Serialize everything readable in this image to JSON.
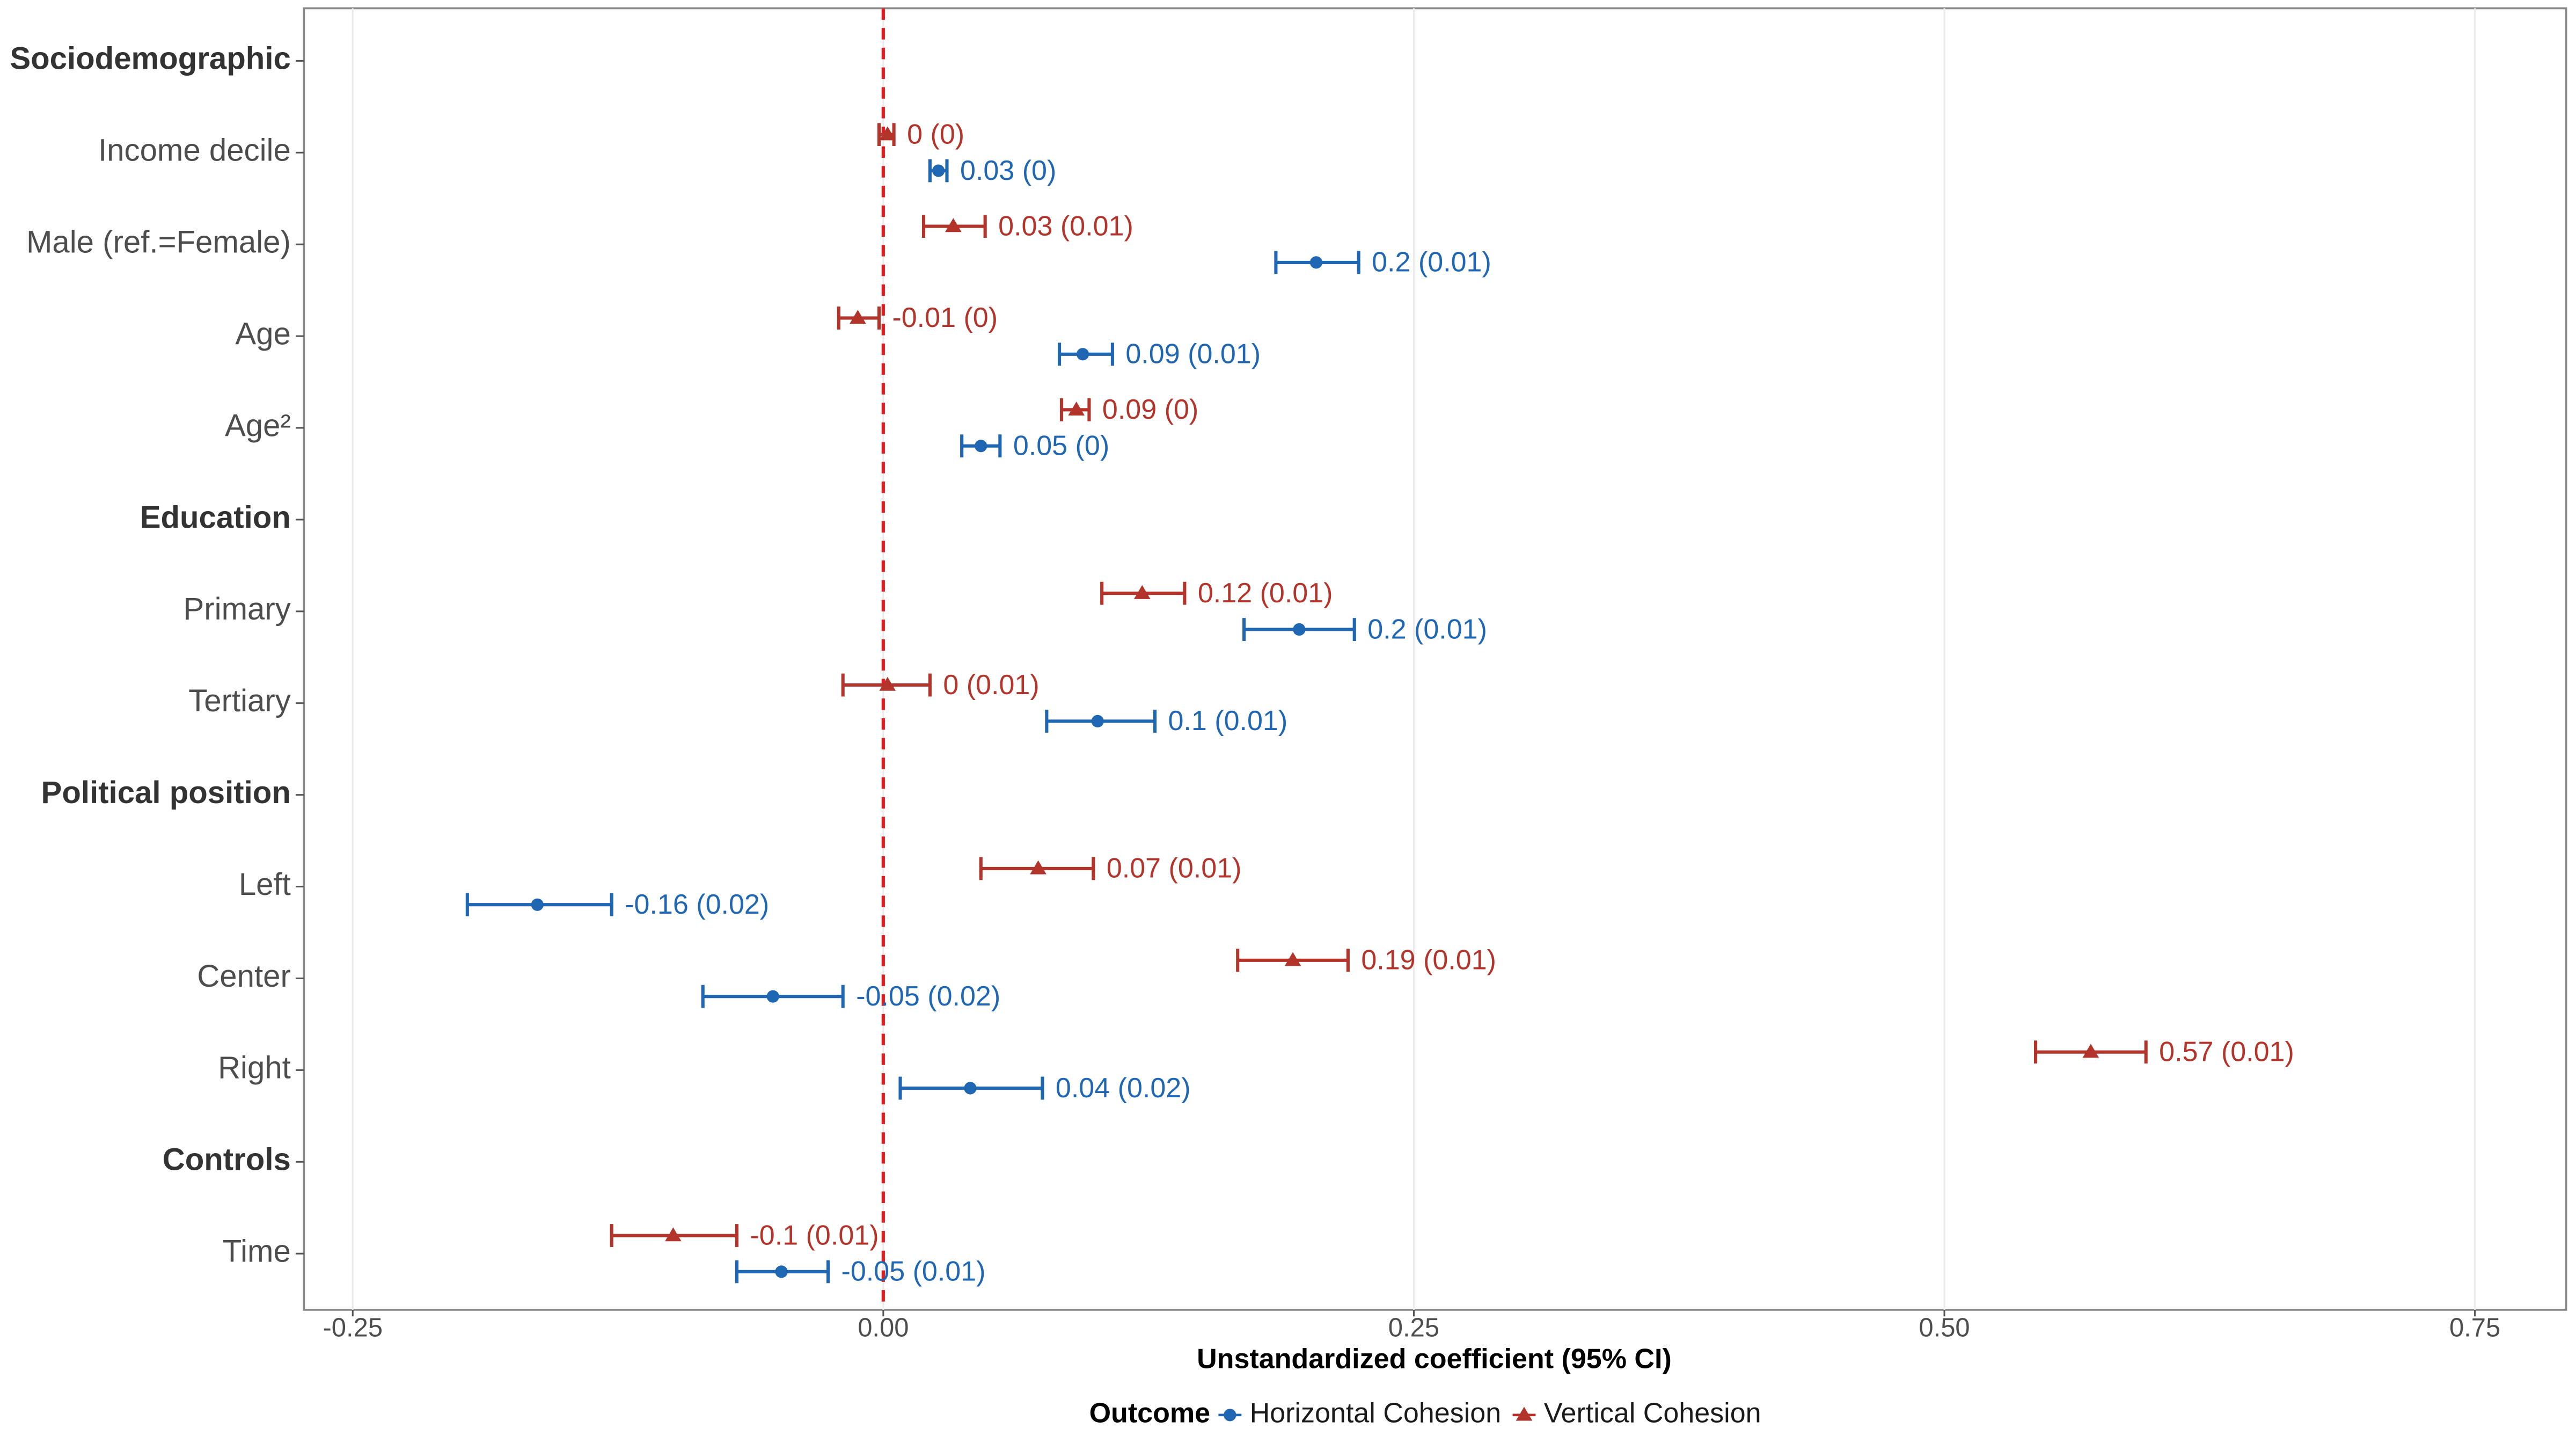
{
  "chart_data": {
    "type": "forest",
    "x_label": "Unstandardized coefficient (95% CI)",
    "legend_title": "Outcome",
    "legend_position": "bottom",
    "grid": true,
    "vline": 0,
    "vline_color": "#e41a1c",
    "xlim": [
      -0.273,
      0.793
    ],
    "xticks": [
      -0.25,
      {
        "value": 0,
        "label": "0.00"
      },
      0.25,
      {
        "value": 0.5,
        "label": "0.50"
      },
      0.75
    ],
    "categories": [
      "Sociodemographic",
      "Income decile",
      "Male (ref.=Female)",
      "Age",
      "Age²",
      "Education",
      "Primary",
      "Tertiary",
      "Political position",
      "Left",
      "Center",
      "Right",
      "Controls",
      "Time"
    ],
    "series": [
      {
        "name": "Vertical Cohesion",
        "color": "#b2342a",
        "marker": "triangle",
        "values": [
          null,
          0.002,
          0.033,
          -0.012,
          0.091,
          null,
          0.122,
          0.002,
          null,
          0.073,
          0.193,
          0.569,
          null,
          -0.099
        ],
        "low": [
          null,
          -0.002,
          0.019,
          -0.021,
          0.084,
          null,
          0.103,
          -0.019,
          null,
          0.046,
          0.167,
          0.543,
          null,
          -0.128
        ],
        "high": [
          null,
          0.005,
          0.048,
          -0.002,
          0.097,
          null,
          0.142,
          0.022,
          null,
          0.099,
          0.219,
          0.595,
          null,
          -0.069
        ],
        "value_labels": [
          null,
          "0 (0)",
          "0.03 (0.01)",
          "-0.01 (0)",
          "0.09 (0)",
          null,
          "0.12 (0.01)",
          "0 (0.01)",
          null,
          "0.07 (0.01)",
          "0.19 (0.01)",
          "0.57 (0.01)",
          null,
          "-0.1 (0.01)"
        ]
      },
      {
        "name": "Horizontal Cohesion",
        "color": "#1f66b3",
        "marker": "circle",
        "values": [
          null,
          0.026,
          0.204,
          0.094,
          0.046,
          null,
          0.196,
          0.101,
          null,
          -0.163,
          -0.052,
          0.041,
          null,
          -0.048
        ],
        "low": [
          null,
          0.022,
          0.185,
          0.083,
          0.037,
          null,
          0.17,
          0.077,
          null,
          -0.196,
          -0.085,
          0.008,
          null,
          -0.069
        ],
        "high": [
          null,
          0.03,
          0.224,
          0.108,
          0.055,
          null,
          0.222,
          0.128,
          null,
          -0.128,
          -0.019,
          0.075,
          null,
          -0.026
        ],
        "value_labels": [
          null,
          "0.03 (0)",
          "0.2 (0.01)",
          "0.09 (0.01)",
          "0.05 (0)",
          null,
          "0.2 (0.01)",
          "0.1 (0.01)",
          null,
          "-0.16 (0.02)",
          "-0.05 (0.02)",
          "0.04 (0.02)",
          null,
          "-0.05 (0.01)"
        ]
      }
    ]
  }
}
